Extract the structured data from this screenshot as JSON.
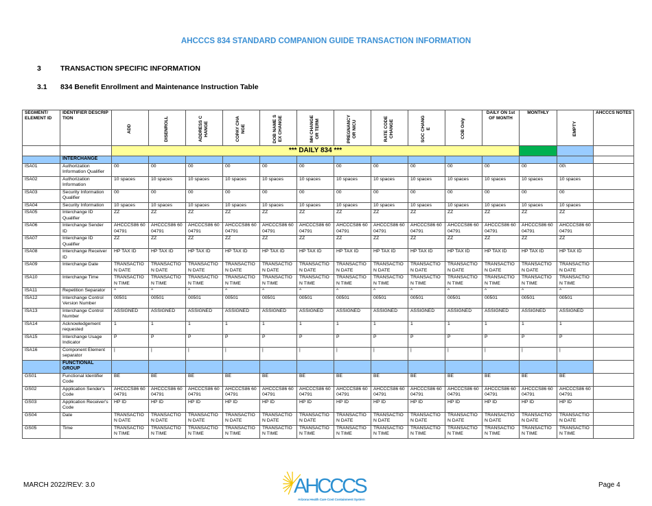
{
  "header": {
    "title": "AHCCCS 834 STANDARD COMPANION GUIDE TRANSACTION INFORMATION"
  },
  "section": {
    "number": "3",
    "title": "TRANSACTION SPECIFIC INFORMATION"
  },
  "subsection": {
    "number": "3.1",
    "title": "834 Benefit Enrollment and Maintenance Instruction Table"
  },
  "table": {
    "columns": [
      "SEGMENT/ ELEMENT ID",
      "IDENTIFIER DESCRIPTION",
      "ADD",
      "DISENROLL",
      "ADDRESS CHANGE",
      "COPAY CHANGE",
      "DOB NAME SEX CHANGE",
      "MH CHANGE OR TERM",
      "PREGNANCY OR NICU",
      "RATE CODE CHANGE",
      "SOC CHANGE",
      "COB Only",
      "DAILY ON 1st OF MONTH",
      "MONTHLY",
      "EMPTY",
      "AHCCCS NOTES"
    ],
    "daily_label": "*** DAILY 834 ***",
    "colors": {
      "daily": "#ffff99",
      "monthly": "#00b050",
      "group": "#99ccff",
      "title": "#3a8fd4"
    },
    "rows": [
      {
        "type": "group",
        "label": "INTERCHANGE"
      },
      {
        "id": "ISA01",
        "desc": "Authorization Information Qualifier",
        "values": [
          "00",
          "00",
          "00",
          "00",
          "00",
          "00",
          "00",
          "00",
          "00",
          "00",
          "00",
          "00",
          "00\\"
        ]
      },
      {
        "id": "ISA02",
        "desc": "Authorization Information",
        "values": [
          "10 spaces",
          "10 spaces",
          "10 spaces",
          "10 spaces",
          "10 spaces",
          "10 spaces",
          "10 spaces",
          "10 spaces",
          "10 spaces",
          "10 spaces",
          "10 spaces",
          "10 spaces",
          "10 spaces"
        ]
      },
      {
        "id": "ISA03",
        "desc": "Security Information Qualifier",
        "values": [
          "00",
          "00",
          "00",
          "00",
          "00",
          "00",
          "00",
          "00",
          "00",
          "00",
          "00",
          "00",
          "00"
        ]
      },
      {
        "id": "ISA04",
        "desc": "Security Information",
        "values": [
          "10 spaces",
          "10 spaces",
          "10 spaces",
          "10 spaces",
          "10 spaces",
          "10 spaces",
          "10 spaces",
          "10 spaces",
          "10 spaces",
          "10 spaces",
          "10 spaces",
          "10 spaces",
          "10 spaces"
        ]
      },
      {
        "id": "ISA05",
        "desc": "Interchange ID Qualifier",
        "values": [
          "ZZ",
          "ZZ",
          "ZZ",
          "ZZ",
          "ZZ",
          "ZZ",
          "ZZ",
          "ZZ",
          "ZZ",
          "ZZ",
          "ZZ",
          "ZZ",
          "ZZ"
        ]
      },
      {
        "id": "ISA06",
        "desc": "Interchange Sender ID",
        "values": [
          "AHCCCS86 6004791",
          "AHCCCS86 6004791",
          "AHCCCS86 6004791",
          "AHCCCS86 6004791",
          "AHCCCS86 6004791",
          "AHCCCS86 6004791",
          "AHCCCS86 6004791",
          "AHCCCS86 6004791",
          "AHCCCS86 6004791",
          "AHCCCS86 6004791",
          "AHCCCS86 6004791",
          "AHCCCS86 6004791",
          "AHCCCS86 6004791"
        ]
      },
      {
        "id": "ISA07",
        "desc": "Interchange ID Qualifier",
        "values": [
          "ZZ",
          "ZZ",
          "ZZ",
          "ZZ",
          "ZZ",
          "ZZ",
          "ZZ",
          "ZZ",
          "ZZ",
          "ZZ",
          "ZZ",
          "ZZ",
          "ZZ"
        ]
      },
      {
        "id": "ISA08",
        "desc": "Interchange Receiver ID",
        "values": [
          "HP TAX ID",
          "HP TAX ID",
          "HP TAX ID",
          "HP TAX ID",
          "HP TAX ID",
          "HP TAX ID",
          "HP TAX ID",
          "HP TAX ID",
          "HP TAX ID",
          "HP TAX ID",
          "HP TAX ID",
          "HP TAX ID",
          "HP TAX ID"
        ]
      },
      {
        "id": "ISA09",
        "desc": "Interchange Date",
        "values": [
          "TRANSACTION DATE",
          "TRANSACTION DATE",
          "TRANSACTION DATE",
          "TRANSACTION DATE",
          "TRANSACTION DATE",
          "TRANSACTION DATE",
          "TRANSACTION DATE",
          "TRANSACTION DATE",
          "TRANSACTION DATE",
          "TRANSACTION DATE",
          "TRANSACTION DATE",
          "TRANSACTION DATE",
          "TRANSACTION DATE"
        ]
      },
      {
        "id": "ISA10",
        "desc": "Interchange Time",
        "values": [
          "TRANSACTION TIME",
          "TRANSACTION TIME",
          "TRANSACTION TIME",
          "TRANSACTION TIME",
          "TRANSACTION TIME",
          "TRANSACTION TIME",
          "TRANSACTION TIME",
          "TRANSACTION TIME",
          "TRANSACTION TIME",
          "TRANSACTION TIME",
          "TRANSACTION TIME",
          "TRANSACTION TIME",
          "TRANSACTION TIME"
        ]
      },
      {
        "id": "ISA11",
        "desc": "Repetition Separator",
        "values": [
          "^",
          "^",
          "^",
          "^",
          "^",
          "^",
          "^",
          "^",
          "^",
          "^",
          "^",
          "^",
          "^"
        ]
      },
      {
        "id": "ISA12",
        "desc": "Interchange Control Version Number",
        "values": [
          "00501",
          "00501",
          "00501",
          "00501",
          "00501",
          "00501",
          "00501",
          "00501",
          "00501",
          "00501",
          "00501",
          "00501",
          "00501"
        ]
      },
      {
        "id": "ISA13",
        "desc": "Interchange Control Number",
        "values": [
          "ASSIGNED",
          "ASSIGNED",
          "ASSIGNED",
          "ASSIGNED",
          "ASSIGNED",
          "ASSIGNED",
          "ASSIGNED",
          "ASSIGNED",
          "ASSIGNED",
          "ASSIGNED",
          "ASSIGNED",
          "ASSIGNED",
          "ASSIGNED"
        ]
      },
      {
        "id": "ISA14",
        "desc": "Acknowledgement requested",
        "values": [
          "1",
          "1",
          "1",
          "1",
          "1",
          "1",
          "1",
          "1",
          "1",
          "1",
          "1",
          "1",
          "1"
        ]
      },
      {
        "id": "ISA15",
        "desc": "Interchange Usage Indicator",
        "values": [
          "P",
          "P",
          "P",
          "P",
          "P",
          "P",
          "P",
          "P",
          "P",
          "P",
          "P",
          "P",
          "P"
        ]
      },
      {
        "id": "ISA16",
        "desc": "Component Element separator",
        "values": [
          "|",
          "|",
          "|",
          "|",
          "|",
          "|",
          "|",
          "|",
          "|",
          "|",
          "|",
          "|",
          "|"
        ]
      },
      {
        "type": "group",
        "label": "FUNCTIONAL GROUP"
      },
      {
        "id": "GS01",
        "desc": "Functional Identifier Code",
        "values": [
          "BE",
          "BE",
          "BE",
          "BE",
          "BE",
          "BE",
          "BE",
          "BE",
          "BE",
          "BE",
          "BE",
          "BE",
          "BE"
        ]
      },
      {
        "id": "GS02",
        "desc": "Application Sender's Code",
        "values": [
          "AHCCCS86 6004791",
          "AHCCCS86 6004791",
          "AHCCCS86 6004791",
          "AHCCCS86 6004791",
          "AHCCCS86 6004791",
          "AHCCCS86 6004791",
          "AHCCCS86 6004791",
          "AHCCCS86 6004791",
          "AHCCCS86 6004791",
          "AHCCCS86 6004791",
          "AHCCCS86 6004791",
          "AHCCCS86 6004791",
          "AHCCCS86 6004791"
        ]
      },
      {
        "id": "GS03",
        "desc": "Application Receiver's Code",
        "values": [
          "HP ID",
          "HP ID",
          "HP ID",
          "HP ID",
          "HP ID",
          "HP ID",
          "HP ID",
          "HP ID",
          "HP ID",
          "HP ID",
          "HP ID",
          "HP ID",
          "HP ID"
        ]
      },
      {
        "id": "GS04",
        "desc": "Date",
        "values": [
          "TRANSACTION DATE",
          "TRANSACTION DATE",
          "TRANSACTION DATE",
          "TRANSACTION DATE",
          "TRANSACTION DATE",
          "TRANSACTION DATE",
          "TRANSACTION DATE",
          "TRANSACTION DATE",
          "TRANSACTION DATE",
          "TRANSACTION DATE",
          "TRANSACTION DATE",
          "TRANSACTION DATE",
          "TRANSACTION DATE"
        ]
      },
      {
        "id": "GS05",
        "desc": "Time",
        "values": [
          "TRANSACTION TIME",
          "TRANSACTION TIME",
          "TRANSACTION TIME",
          "TRANSACTION TIME",
          "TRANSACTION TIME",
          "TRANSACTION TIME",
          "TRANSACTION TIME",
          "TRANSACTION TIME",
          "TRANSACTION TIME",
          "TRANSACTION TIME",
          "TRANSACTION TIME",
          "TRANSACTION TIME",
          "TRANSACTION TIME"
        ]
      }
    ]
  },
  "footer": {
    "revision": "MARCH 2022/REV:  3.0",
    "page": "Page 4",
    "logo_text": "AHCCCS",
    "logo_tagline": "Arizona Health Care Cost Containment System"
  }
}
